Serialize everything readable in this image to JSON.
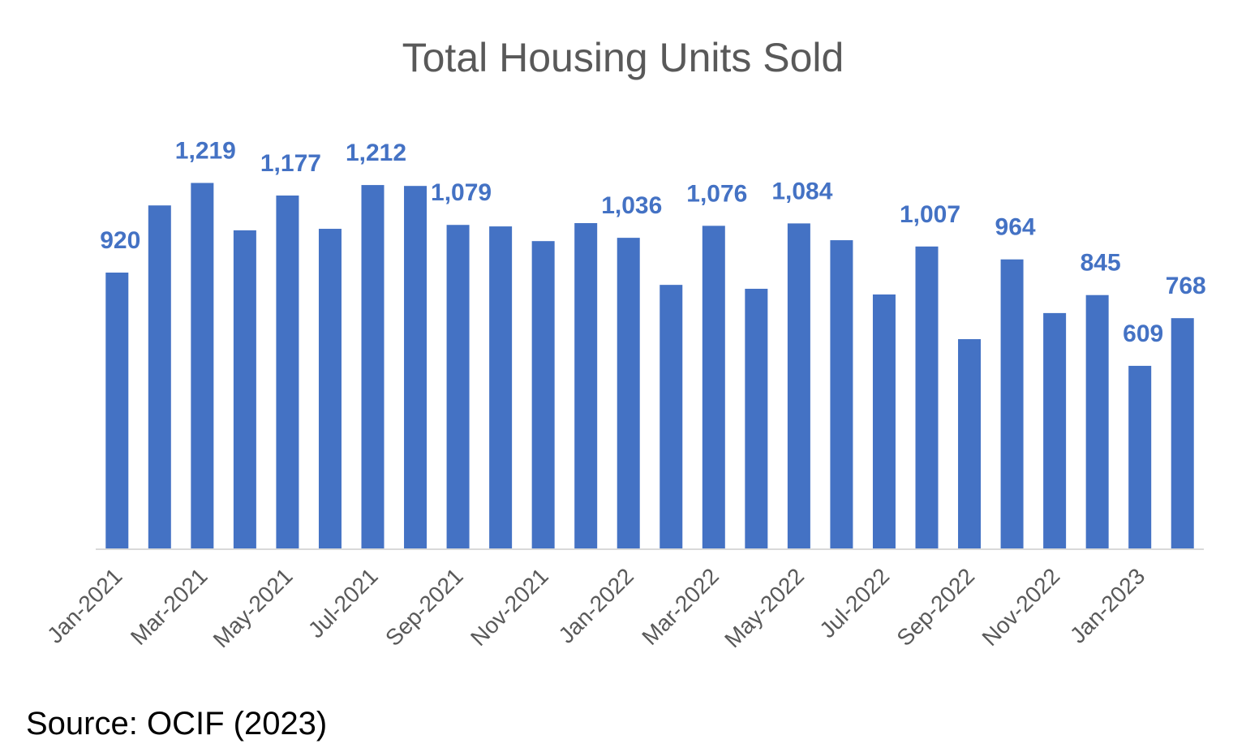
{
  "chart_data": {
    "type": "bar",
    "title": "Total Housing Units Sold",
    "xlabel": "",
    "ylabel": "",
    "ylim": [
      0,
      1400
    ],
    "grid": false,
    "bar_color": "#4472C4",
    "categories": [
      "Jan-2021",
      "Feb-2021",
      "Mar-2021",
      "Apr-2021",
      "May-2021",
      "Jun-2021",
      "Jul-2021",
      "Aug-2021",
      "Sep-2021",
      "Oct-2021",
      "Nov-2021",
      "Dec-2021",
      "Jan-2022",
      "Feb-2022",
      "Mar-2022",
      "Apr-2022",
      "May-2022",
      "Jun-2022",
      "Jul-2022",
      "Aug-2022",
      "Sep-2022",
      "Oct-2022",
      "Nov-2022",
      "Dec-2022",
      "Jan-2023",
      "Feb-2023"
    ],
    "x_tick_labels": [
      "Jan-2021",
      "Mar-2021",
      "May-2021",
      "Jul-2021",
      "Sep-2021",
      "Nov-2021",
      "Jan-2022",
      "Mar-2022",
      "May-2022",
      "Jul-2022",
      "Sep-2022",
      "Nov-2022",
      "Jan-2023"
    ],
    "values": [
      920,
      1144,
      1219,
      1061,
      1177,
      1066,
      1212,
      1209,
      1079,
      1074,
      1025,
      1085,
      1036,
      879,
      1076,
      866,
      1084,
      1028,
      847,
      1007,
      698,
      964,
      785,
      845,
      609,
      768
    ],
    "data_labels": [
      {
        "category": "Jan-2021",
        "text": "920"
      },
      {
        "category": "Mar-2021",
        "text": "1,219"
      },
      {
        "category": "May-2021",
        "text": "1,177"
      },
      {
        "category": "Jul-2021",
        "text": "1,212"
      },
      {
        "category": "Sep-2021",
        "text": "1,079"
      },
      {
        "category": "Jan-2022",
        "text": "1,036"
      },
      {
        "category": "Mar-2022",
        "text": "1,076"
      },
      {
        "category": "May-2022",
        "text": "1,084"
      },
      {
        "category": "Aug-2022",
        "text": "1,007"
      },
      {
        "category": "Oct-2022",
        "text": "964"
      },
      {
        "category": "Dec-2022",
        "text": "845"
      },
      {
        "category": "Jan-2023",
        "text": "609"
      },
      {
        "category": "Feb-2023",
        "text": "768"
      }
    ]
  },
  "source": "Source: OCIF (2023)"
}
